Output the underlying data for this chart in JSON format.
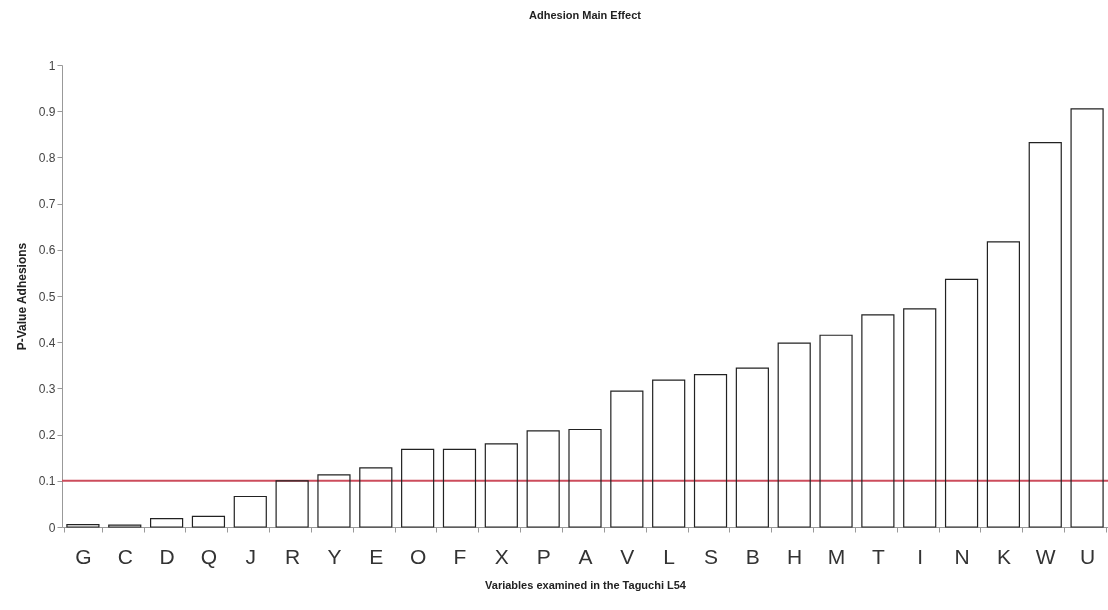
{
  "chart_data": {
    "type": "bar",
    "title": "Adhesion Main Effect",
    "xlabel": "Variables examined in the Taguchi L54",
    "ylabel": "P-Value Adhesions",
    "categories": [
      "G",
      "C",
      "D",
      "Q",
      "J",
      "R",
      "Y",
      "E",
      "O",
      "F",
      "X",
      "P",
      "A",
      "V",
      "L",
      "S",
      "B",
      "H",
      "M",
      "T",
      "I",
      "N",
      "K",
      "W",
      "U"
    ],
    "values": [
      0.005,
      0.004,
      0.018,
      0.023,
      0.066,
      0.1,
      0.113,
      0.128,
      0.168,
      0.168,
      0.18,
      0.208,
      0.211,
      0.294,
      0.318,
      0.33,
      0.344,
      0.398,
      0.415,
      0.459,
      0.472,
      0.536,
      0.617,
      0.832,
      0.905
    ],
    "color": "#222222",
    "ylim": [
      0,
      1
    ],
    "yticks": [
      0,
      0.1,
      0.2,
      0.3,
      0.4,
      0.5,
      0.6,
      0.7,
      0.8,
      0.9,
      1
    ],
    "ref_lines": [
      {
        "axis": "y",
        "value": 0.1,
        "color": "#cc4c5c"
      }
    ]
  }
}
